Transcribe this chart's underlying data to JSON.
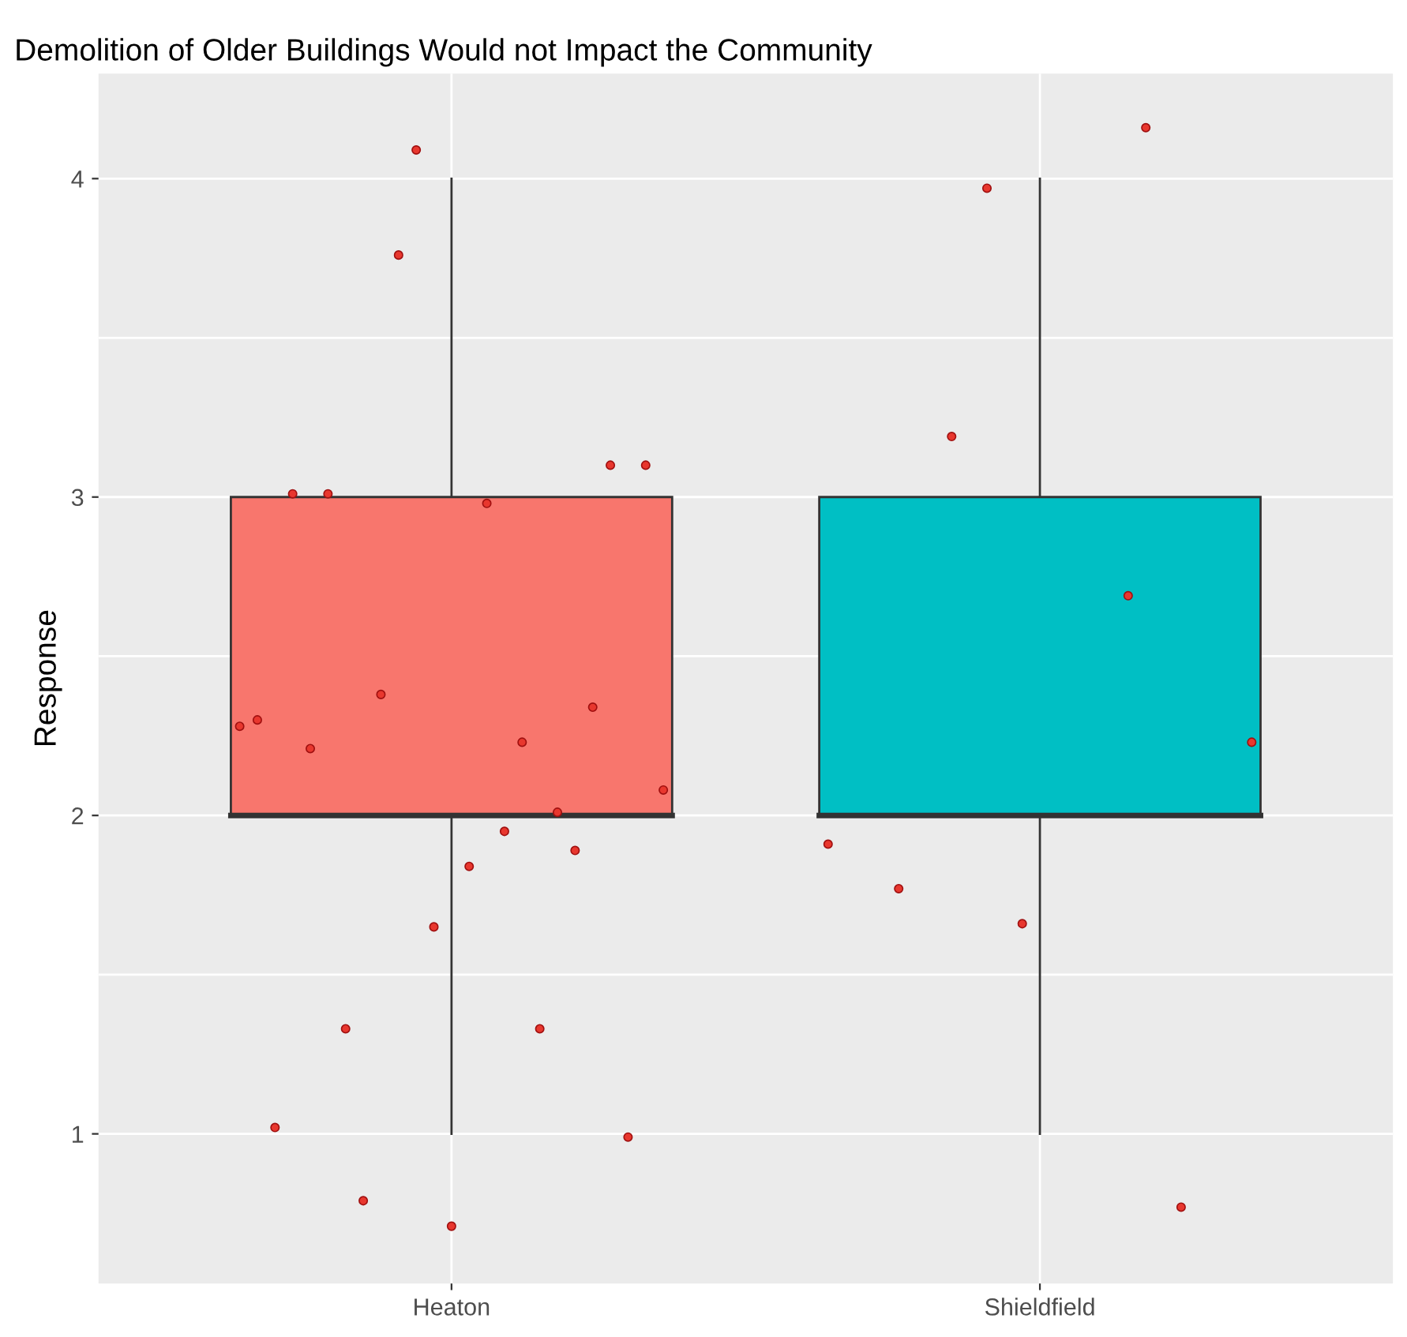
{
  "chart_data": {
    "type": "box",
    "title": "Demolition of Older Buildings Would not Impact the Community",
    "ylabel": "Response",
    "categories": [
      "Heaton",
      "Shieldfield"
    ],
    "colors": [
      "#f8766d",
      "#00bfc4"
    ],
    "boxes": [
      {
        "low": 1,
        "q1": 2,
        "median": 2,
        "q3": 3,
        "high": 4
      },
      {
        "low": 1,
        "q1": 2,
        "median": 2,
        "q3": 3,
        "high": 4
      }
    ],
    "ylim": [
      0.53,
      4.33
    ],
    "yticks": [
      1,
      {
        "value": 1.5,
        "label": null
      },
      2,
      {
        "value": 2.5,
        "label": null
      },
      3,
      {
        "value": 3.5,
        "label": null
      },
      4
    ],
    "grid": true,
    "marker": "circle",
    "series": [
      {
        "type": "scatter",
        "color": "#e8372e",
        "values": [
          2.28,
          1.91
        ]
      },
      {
        "type": "scatter",
        "color": "#e8372e",
        "values": [
          2.3,
          null
        ]
      },
      {
        "type": "scatter",
        "color": "#e8372e",
        "values": [
          1.02,
          null
        ]
      },
      {
        "type": "scatter",
        "color": "#e8372e",
        "values": [
          3.01,
          null
        ]
      },
      {
        "type": "scatter",
        "color": "#e8372e",
        "values": [
          2.21,
          1.77
        ]
      },
      {
        "type": "scatter",
        "color": "#e8372e",
        "values": [
          3.01,
          null
        ]
      },
      {
        "type": "scatter",
        "color": "#e8372e",
        "values": [
          1.33,
          null
        ]
      },
      {
        "type": "scatter",
        "color": "#e8372e",
        "values": [
          0.79,
          3.19
        ]
      },
      {
        "type": "scatter",
        "color": "#e8372e",
        "values": [
          2.38,
          null
        ]
      },
      {
        "type": "scatter",
        "color": "#e8372e",
        "values": [
          3.76,
          3.97
        ]
      },
      {
        "type": "scatter",
        "color": "#e8372e",
        "values": [
          4.09,
          null
        ]
      },
      {
        "type": "scatter",
        "color": "#e8372e",
        "values": [
          1.65,
          1.66
        ]
      },
      {
        "type": "scatter",
        "color": "#e8372e",
        "values": [
          0.71,
          null
        ]
      },
      {
        "type": "scatter",
        "color": "#e8372e",
        "values": [
          1.84,
          null
        ]
      },
      {
        "type": "scatter",
        "color": "#e8372e",
        "values": [
          2.98,
          null
        ]
      },
      {
        "type": "scatter",
        "color": "#e8372e",
        "values": [
          1.95,
          null
        ]
      },
      {
        "type": "scatter",
        "color": "#e8372e",
        "values": [
          2.23,
          null
        ]
      },
      {
        "type": "scatter",
        "color": "#e8372e",
        "values": [
          1.33,
          2.69
        ]
      },
      {
        "type": "scatter",
        "color": "#e8372e",
        "values": [
          2.01,
          4.16
        ]
      },
      {
        "type": "scatter",
        "color": "#e8372e",
        "values": [
          1.89,
          null
        ]
      },
      {
        "type": "scatter",
        "color": "#e8372e",
        "values": [
          2.34,
          0.77
        ]
      },
      {
        "type": "scatter",
        "color": "#e8372e",
        "values": [
          3.1,
          null
        ]
      },
      {
        "type": "scatter",
        "color": "#e8372e",
        "values": [
          0.99,
          null
        ]
      },
      {
        "type": "scatter",
        "color": "#e8372e",
        "values": [
          3.1,
          null
        ]
      },
      {
        "type": "scatter",
        "color": "#e8372e",
        "values": [
          2.08,
          2.23
        ]
      }
    ]
  }
}
